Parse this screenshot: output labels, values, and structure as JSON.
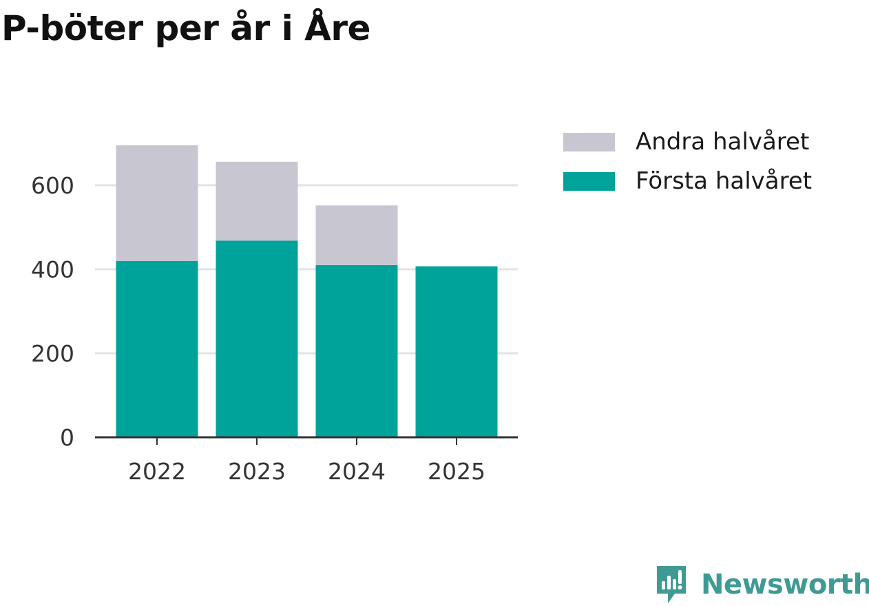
{
  "title": "P-böter per år i Åre",
  "chart_data": {
    "type": "bar",
    "stacked": true,
    "categories": [
      "2022",
      "2023",
      "2024",
      "2025"
    ],
    "series": [
      {
        "name": "Första halvåret",
        "color": "#00a39a",
        "values": [
          420,
          468,
          410,
          407
        ]
      },
      {
        "name": "Andra halvåret",
        "color": "#c8c7d1",
        "values": [
          275,
          188,
          142,
          0
        ]
      }
    ],
    "yticks": [
      0,
      200,
      400,
      600
    ],
    "ylim": [
      0,
      700
    ],
    "grid": true,
    "legend_position": "top-right",
    "legend": [
      "Andra halvåret",
      "Första halvåret"
    ]
  },
  "brand": {
    "name": "Newsworthy",
    "color": "#3f9a94",
    "icon": "newsworthy-logo-icon"
  }
}
